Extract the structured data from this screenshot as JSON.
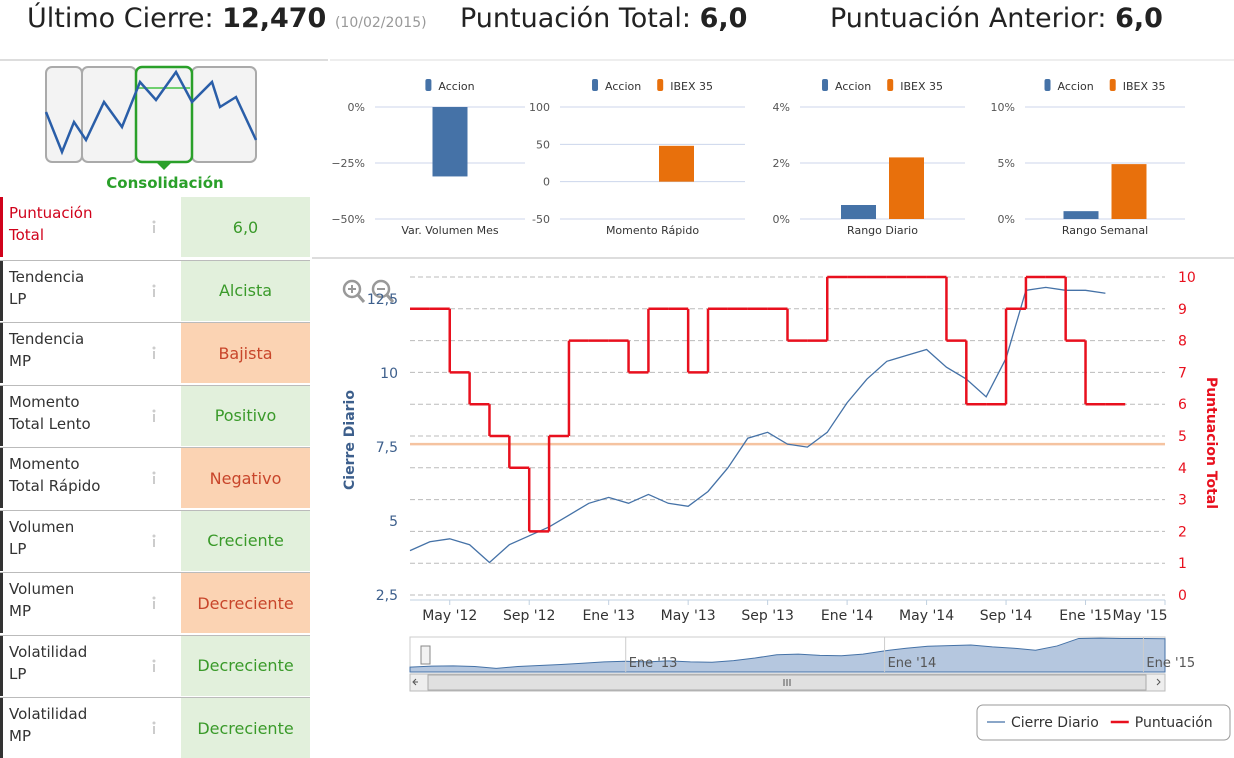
{
  "header": {
    "last_close_label": "Último Cierre:",
    "last_close": "12,470",
    "last_close_date": "(10/02/2015)",
    "total_label": "Puntuación Total:",
    "total": "6,0",
    "previous_label": "Puntuación Anterior:",
    "previous": "6,0"
  },
  "pattern": {
    "label": "Consolidación"
  },
  "indicators": {
    "rows": [
      {
        "label": "Puntuación\nTotal",
        "value": "6,0",
        "background": "#e2f0dc",
        "color": "#3a9a2a",
        "label_color": "#d0021b"
      },
      {
        "label": "Tendencia\nLP",
        "value": "Alcista",
        "background": "#e2f0dc",
        "color": "#3a9a2a"
      },
      {
        "label": "Tendencia\nMP",
        "value": "Bajista",
        "background": "#fbd3b3",
        "color": "#c8452a"
      },
      {
        "label": "Momento\nTotal Lento",
        "value": "Positivo",
        "background": "#e2f0dc",
        "color": "#3a9a2a"
      },
      {
        "label": "Momento\nTotal Rápido",
        "value": "Negativo",
        "background": "#fbd3b3",
        "color": "#c8452a"
      },
      {
        "label": "Volumen\nLP",
        "value": "Creciente",
        "background": "#e2f0dc",
        "color": "#3a9a2a"
      },
      {
        "label": "Volumen\nMP",
        "value": "Decreciente",
        "background": "#fbd3b3",
        "color": "#c8452a"
      },
      {
        "label": "Volatilidad\nLP",
        "value": "Decreciente",
        "background": "#e2f0dc",
        "color": "#3a9a2a"
      },
      {
        "label": "Volatilidad\nMP",
        "value": "Decreciente",
        "background": "#e2f0dc",
        "color": "#3a9a2a"
      }
    ]
  },
  "chart_data": [
    {
      "type": "bar",
      "categories": [
        "Var. Volumen Mes"
      ],
      "series": [
        {
          "name": "Accion",
          "color": "#4572a7",
          "values": [
            -31
          ]
        }
      ],
      "ylim": [
        -50,
        0
      ],
      "yticks": [
        {
          "value": 0,
          "label": "0%"
        },
        {
          "value": -25,
          "label": "−25%"
        },
        {
          "value": -50,
          "label": "−50%"
        }
      ],
      "grid": true
    },
    {
      "type": "bar",
      "categories": [
        "Momento Rápido"
      ],
      "series": [
        {
          "name": "Accion",
          "color": "#4572a7",
          "values": [
            null
          ]
        },
        {
          "name": "IBEX 35",
          "color": "#e8700c",
          "values": [
            48
          ]
        }
      ],
      "ylim": [
        -50,
        100
      ],
      "yticks": [
        100,
        50,
        0,
        -50
      ],
      "grid": true
    },
    {
      "type": "bar",
      "categories": [
        "Rango Diario"
      ],
      "series": [
        {
          "name": "Accion",
          "color": "#4572a7",
          "values": [
            0.5
          ]
        },
        {
          "name": "IBEX 35",
          "color": "#e8700c",
          "values": [
            2.2
          ]
        }
      ],
      "ylim": [
        0,
        4
      ],
      "yticks": [
        {
          "value": 4,
          "label": "4%"
        },
        {
          "value": 2,
          "label": "2%"
        },
        {
          "value": 0,
          "label": "0%"
        }
      ],
      "grid": true
    },
    {
      "type": "bar",
      "categories": [
        "Rango Semanal"
      ],
      "series": [
        {
          "name": "Accion",
          "color": "#4572a7",
          "values": [
            0.7
          ]
        },
        {
          "name": "IBEX 35",
          "color": "#e8700c",
          "values": [
            4.9
          ]
        }
      ],
      "ylim": [
        0,
        10
      ],
      "yticks": [
        {
          "value": 10,
          "label": "10%"
        },
        {
          "value": 5,
          "label": "5%"
        },
        {
          "value": 0,
          "label": "0%"
        }
      ],
      "grid": true
    },
    {
      "type": "line",
      "x": [
        "2012-03",
        "2012-04",
        "2012-05",
        "2012-06",
        "2012-07",
        "2012-08",
        "2012-09",
        "2012-10",
        "2012-11",
        "2012-12",
        "2013-01",
        "2013-02",
        "2013-03",
        "2013-04",
        "2013-05",
        "2013-06",
        "2013-07",
        "2013-08",
        "2013-09",
        "2013-10",
        "2013-11",
        "2013-12",
        "2014-01",
        "2014-02",
        "2014-03",
        "2014-04",
        "2014-05",
        "2014-06",
        "2014-07",
        "2014-08",
        "2014-09",
        "2014-10",
        "2014-11",
        "2014-12",
        "2015-01",
        "2015-02"
      ],
      "series": [
        {
          "name": "Cierre Diario",
          "color": "#4572a7",
          "values": [
            4.0,
            4.3,
            4.4,
            4.2,
            3.6,
            4.2,
            4.5,
            4.8,
            5.2,
            5.6,
            5.8,
            5.6,
            5.9,
            5.6,
            5.5,
            6.0,
            6.8,
            7.8,
            8.0,
            7.6,
            7.5,
            8.0,
            9.0,
            9.8,
            10.4,
            10.6,
            10.8,
            10.2,
            9.8,
            9.2,
            10.5,
            12.8,
            12.9,
            12.8,
            12.8,
            12.7
          ]
        },
        {
          "name": "Puntuación",
          "color": "#e8101e",
          "axis": "y2",
          "step": true,
          "values": [
            9,
            9,
            7,
            6,
            5,
            4,
            2,
            5,
            8,
            8,
            8,
            7,
            9,
            9,
            7,
            9,
            9,
            9,
            9,
            8,
            8,
            10,
            10,
            10,
            10,
            10,
            10,
            8,
            6,
            6,
            9,
            10,
            10,
            8,
            6,
            6
          ]
        }
      ],
      "ylabel": "Cierre Diario",
      "y2label": "Puntuacion Total",
      "xlim": [
        "2012-03",
        "2015-05"
      ],
      "xticks": [
        {
          "value": "2012-05",
          "label": "May '12"
        },
        {
          "value": "2012-09",
          "label": "Sep '12"
        },
        {
          "value": "2013-01",
          "label": "Ene '13"
        },
        {
          "value": "2013-05",
          "label": "May '13"
        },
        {
          "value": "2013-09",
          "label": "Sep '13"
        },
        {
          "value": "2014-01",
          "label": "Ene '14"
        },
        {
          "value": "2014-05",
          "label": "May '14"
        },
        {
          "value": "2014-09",
          "label": "Sep '14"
        },
        {
          "value": "2015-01",
          "label": "Ene '15"
        },
        {
          "value": "2015-05",
          "label": "May '15"
        }
      ],
      "ylim": [
        2.5,
        13.25
      ],
      "yticks": [
        {
          "value": 2.5,
          "label": "2,5"
        },
        5,
        {
          "value": 7.5,
          "label": "7,5"
        },
        10,
        {
          "value": 12.5,
          "label": "12,5"
        }
      ],
      "y2lim": [
        0,
        10
      ],
      "y2ticks": [
        0,
        1,
        2,
        3,
        4,
        5,
        6,
        7,
        8,
        9,
        10
      ],
      "grid": true,
      "plot_line": {
        "value": 7.6,
        "color": "#f5c3a0"
      },
      "navigator": {
        "xlim": [
          "2012-03",
          "2015-02"
        ],
        "xticks": [
          {
            "value": "2013-01",
            "label": "Ene '13"
          },
          {
            "value": "2014-01",
            "label": "Ene '14"
          },
          {
            "value": "2015-01",
            "label": "Ene '15"
          }
        ]
      },
      "legend": "bottom-right"
    }
  ]
}
